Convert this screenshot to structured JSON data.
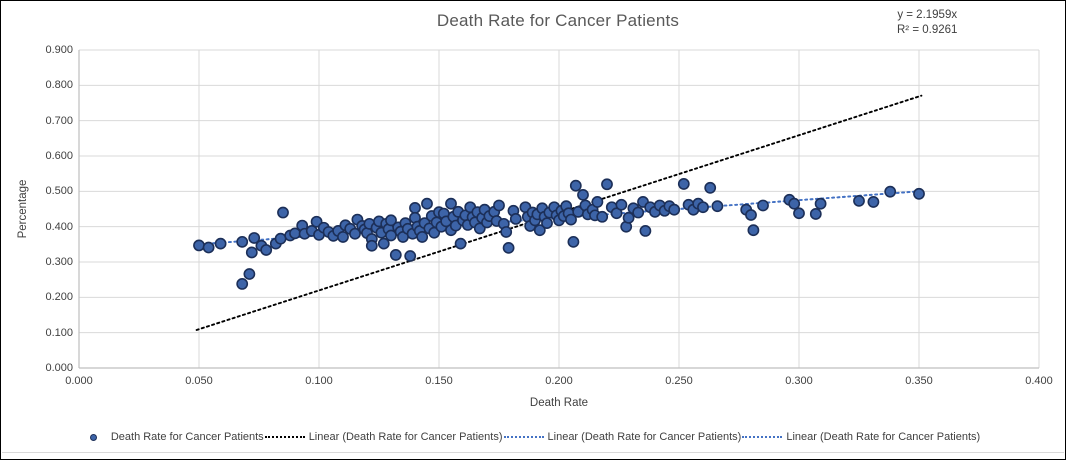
{
  "chart_data": {
    "type": "scatter",
    "title": "Death Rate for Cancer Patients",
    "xlabel": "Death Rate",
    "ylabel": "Percentage",
    "xlim": [
      0.0,
      0.4
    ],
    "ylim": [
      0.0,
      0.9
    ],
    "x_ticks": [
      0.0,
      0.05,
      0.1,
      0.15,
      0.2,
      0.25,
      0.3,
      0.35,
      0.4
    ],
    "y_ticks": [
      0.0,
      0.1,
      0.2,
      0.3,
      0.4,
      0.5,
      0.6,
      0.7,
      0.8,
      0.9
    ],
    "tick_decimals": 3,
    "grid": true,
    "legend_position": "bottom",
    "annotations": [
      "y = 2.1959x",
      "R² = 0.9261"
    ],
    "colors": {
      "marker_fill": "#3D64A8",
      "marker_stroke": "#1C2F58",
      "trend_black": "#000000",
      "trend_blue": "#4472C4",
      "gridline": "#D9D9D9",
      "axis_line": "#BFBFBF",
      "title_text": "#595959",
      "label_text": "#404040"
    },
    "series": [
      {
        "name": "Death Rate for Cancer Patients",
        "kind": "scatter",
        "points": [
          [
            0.05,
            0.347
          ],
          [
            0.054,
            0.341
          ],
          [
            0.059,
            0.352
          ],
          [
            0.068,
            0.357
          ],
          [
            0.068,
            0.238
          ],
          [
            0.071,
            0.266
          ],
          [
            0.072,
            0.327
          ],
          [
            0.073,
            0.368
          ],
          [
            0.076,
            0.346
          ],
          [
            0.078,
            0.334
          ],
          [
            0.082,
            0.352
          ],
          [
            0.084,
            0.366
          ],
          [
            0.085,
            0.44
          ],
          [
            0.088,
            0.375
          ],
          [
            0.09,
            0.381
          ],
          [
            0.093,
            0.403
          ],
          [
            0.094,
            0.38
          ],
          [
            0.097,
            0.388
          ],
          [
            0.099,
            0.414
          ],
          [
            0.1,
            0.377
          ],
          [
            0.102,
            0.397
          ],
          [
            0.104,
            0.385
          ],
          [
            0.106,
            0.374
          ],
          [
            0.108,
            0.388
          ],
          [
            0.11,
            0.371
          ],
          [
            0.111,
            0.404
          ],
          [
            0.113,
            0.394
          ],
          [
            0.115,
            0.38
          ],
          [
            0.116,
            0.42
          ],
          [
            0.118,
            0.402
          ],
          [
            0.119,
            0.392
          ],
          [
            0.12,
            0.382
          ],
          [
            0.121,
            0.408
          ],
          [
            0.122,
            0.365
          ],
          [
            0.122,
            0.346
          ],
          [
            0.124,
            0.397
          ],
          [
            0.125,
            0.415
          ],
          [
            0.126,
            0.383
          ],
          [
            0.127,
            0.352
          ],
          [
            0.128,
            0.408
          ],
          [
            0.129,
            0.393
          ],
          [
            0.13,
            0.375
          ],
          [
            0.13,
            0.418
          ],
          [
            0.132,
            0.32
          ],
          [
            0.133,
            0.398
          ],
          [
            0.134,
            0.386
          ],
          [
            0.135,
            0.371
          ],
          [
            0.136,
            0.41
          ],
          [
            0.137,
            0.394
          ],
          [
            0.138,
            0.317
          ],
          [
            0.139,
            0.38
          ],
          [
            0.14,
            0.453
          ],
          [
            0.14,
            0.425
          ],
          [
            0.141,
            0.4
          ],
          [
            0.142,
            0.388
          ],
          [
            0.143,
            0.371
          ],
          [
            0.144,
            0.41
          ],
          [
            0.145,
            0.465
          ],
          [
            0.146,
            0.395
          ],
          [
            0.147,
            0.43
          ],
          [
            0.148,
            0.383
          ],
          [
            0.149,
            0.412
          ],
          [
            0.15,
            0.441
          ],
          [
            0.151,
            0.4
          ],
          [
            0.152,
            0.437
          ],
          [
            0.153,
            0.415
          ],
          [
            0.155,
            0.39
          ],
          [
            0.155,
            0.465
          ],
          [
            0.156,
            0.428
          ],
          [
            0.157,
            0.403
          ],
          [
            0.158,
            0.442
          ],
          [
            0.159,
            0.352
          ],
          [
            0.16,
            0.418
          ],
          [
            0.161,
            0.432
          ],
          [
            0.162,
            0.405
          ],
          [
            0.163,
            0.455
          ],
          [
            0.164,
            0.427
          ],
          [
            0.165,
            0.412
          ],
          [
            0.166,
            0.441
          ],
          [
            0.167,
            0.395
          ],
          [
            0.168,
            0.425
          ],
          [
            0.169,
            0.448
          ],
          [
            0.17,
            0.412
          ],
          [
            0.171,
            0.43
          ],
          [
            0.173,
            0.442
          ],
          [
            0.174,
            0.416
          ],
          [
            0.175,
            0.46
          ],
          [
            0.177,
            0.408
          ],
          [
            0.178,
            0.385
          ],
          [
            0.179,
            0.34
          ],
          [
            0.181,
            0.445
          ],
          [
            0.182,
            0.422
          ],
          [
            0.186,
            0.455
          ],
          [
            0.187,
            0.428
          ],
          [
            0.188,
            0.402
          ],
          [
            0.189,
            0.44
          ],
          [
            0.19,
            0.418
          ],
          [
            0.191,
            0.435
          ],
          [
            0.192,
            0.39
          ],
          [
            0.193,
            0.452
          ],
          [
            0.194,
            0.428
          ],
          [
            0.195,
            0.41
          ],
          [
            0.196,
            0.44
          ],
          [
            0.198,
            0.455
          ],
          [
            0.199,
            0.432
          ],
          [
            0.2,
            0.418
          ],
          [
            0.201,
            0.445
          ],
          [
            0.202,
            0.43
          ],
          [
            0.203,
            0.458
          ],
          [
            0.204,
            0.438
          ],
          [
            0.205,
            0.42
          ],
          [
            0.206,
            0.357
          ],
          [
            0.207,
            0.516
          ],
          [
            0.208,
            0.442
          ],
          [
            0.21,
            0.49
          ],
          [
            0.211,
            0.46
          ],
          [
            0.212,
            0.435
          ],
          [
            0.214,
            0.448
          ],
          [
            0.215,
            0.432
          ],
          [
            0.216,
            0.47
          ],
          [
            0.218,
            0.428
          ],
          [
            0.22,
            0.52
          ],
          [
            0.222,
            0.455
          ],
          [
            0.224,
            0.438
          ],
          [
            0.226,
            0.462
          ],
          [
            0.228,
            0.4
          ],
          [
            0.229,
            0.425
          ],
          [
            0.231,
            0.452
          ],
          [
            0.233,
            0.44
          ],
          [
            0.235,
            0.47
          ],
          [
            0.236,
            0.388
          ],
          [
            0.238,
            0.455
          ],
          [
            0.24,
            0.442
          ],
          [
            0.242,
            0.46
          ],
          [
            0.244,
            0.445
          ],
          [
            0.246,
            0.458
          ],
          [
            0.248,
            0.448
          ],
          [
            0.252,
            0.521
          ],
          [
            0.254,
            0.462
          ],
          [
            0.256,
            0.448
          ],
          [
            0.258,
            0.465
          ],
          [
            0.26,
            0.455
          ],
          [
            0.263,
            0.51
          ],
          [
            0.266,
            0.458
          ],
          [
            0.278,
            0.448
          ],
          [
            0.28,
            0.433
          ],
          [
            0.281,
            0.39
          ],
          [
            0.285,
            0.46
          ],
          [
            0.296,
            0.476
          ],
          [
            0.298,
            0.465
          ],
          [
            0.3,
            0.438
          ],
          [
            0.307,
            0.436
          ],
          [
            0.309,
            0.465
          ],
          [
            0.325,
            0.473
          ],
          [
            0.331,
            0.47
          ],
          [
            0.338,
            0.499
          ],
          [
            0.35,
            0.493
          ]
        ]
      },
      {
        "name": "Linear (Death Rate for Cancer Patients)",
        "kind": "trendline",
        "color_key": "trend_black",
        "slope": 2.1959,
        "intercept": 0,
        "x_range": [
          0.049,
          0.351
        ],
        "dash": "2.2 3.2",
        "width": 1.9
      },
      {
        "name": "Linear (Death Rate for Cancer Patients)",
        "kind": "trendline",
        "color_key": "trend_blue",
        "slope": 0.5,
        "intercept": 0.325,
        "x_range": [
          0.049,
          0.351
        ],
        "dash": "2 3.4",
        "width": 1.8
      },
      {
        "name": "Linear (Death Rate for Cancer Patients)",
        "kind": "trendline",
        "color_key": "trend_blue",
        "slope": 0.5,
        "intercept": 0.325,
        "x_range": [
          0.049,
          0.351
        ],
        "dash": "2 3.4",
        "width": 1.8
      }
    ],
    "legend": {
      "items": [
        {
          "sample": "marker",
          "color": "#3D64A8",
          "border": "#1C2F58",
          "label": "Death Rate for Cancer Patients"
        },
        {
          "sample": "dotted-line",
          "color": "#000000",
          "label": "Linear (Death Rate for Cancer Patients)"
        },
        {
          "sample": "dotted-line",
          "color": "#4472C4",
          "label": "Linear (Death Rate for Cancer Patients)"
        },
        {
          "sample": "dotted-line",
          "color": "#4472C4",
          "label": "Linear (Death Rate for Cancer Patients)"
        }
      ]
    }
  }
}
